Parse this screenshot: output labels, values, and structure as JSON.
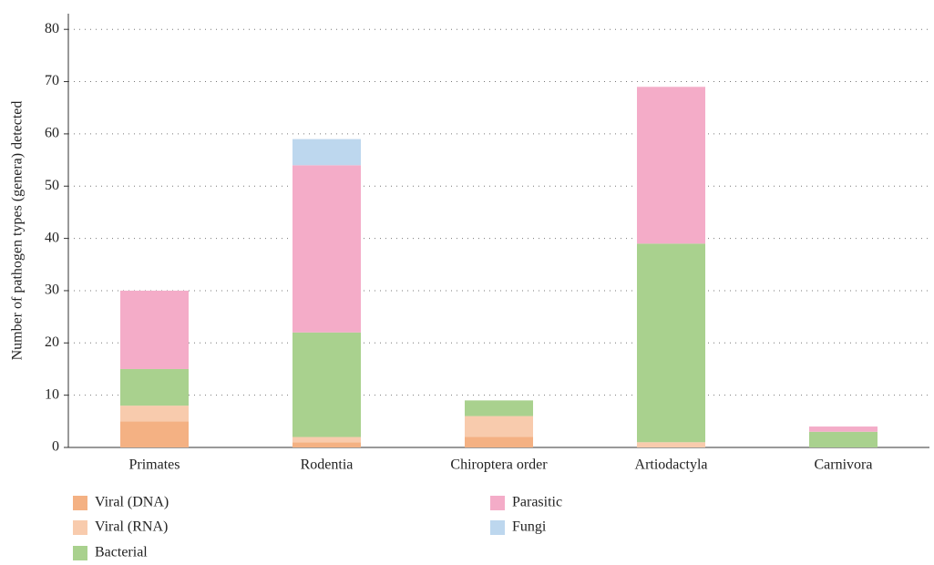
{
  "chart_data": {
    "type": "stacked-bar",
    "y_label": "Number of pathogen types (genera) detected",
    "categories": [
      "Primates",
      "Rodentia",
      "Chiroptera order",
      "Artiodactyla",
      "Carnivora"
    ],
    "series": [
      {
        "name": "Viral (DNA)",
        "color": "#f4b183",
        "values": [
          5,
          1,
          2,
          0,
          0
        ]
      },
      {
        "name": "Viral (RNA)",
        "color": "#f8cbad",
        "values": [
          3,
          1,
          4,
          1,
          0
        ]
      },
      {
        "name": "Bacterial",
        "color": "#a9d18e",
        "values": [
          7,
          20,
          3,
          38,
          3
        ]
      },
      {
        "name": "Parasitic",
        "color": "#f4acc8",
        "values": [
          15,
          32,
          0,
          30,
          1
        ]
      },
      {
        "name": "Fungi",
        "color": "#bdd7ee",
        "values": [
          0,
          5,
          0,
          0,
          0
        ]
      }
    ],
    "ylim": [
      0,
      83
    ],
    "yticks": [
      0,
      10,
      20,
      30,
      40,
      50,
      60,
      70,
      80
    ],
    "grid": true
  }
}
